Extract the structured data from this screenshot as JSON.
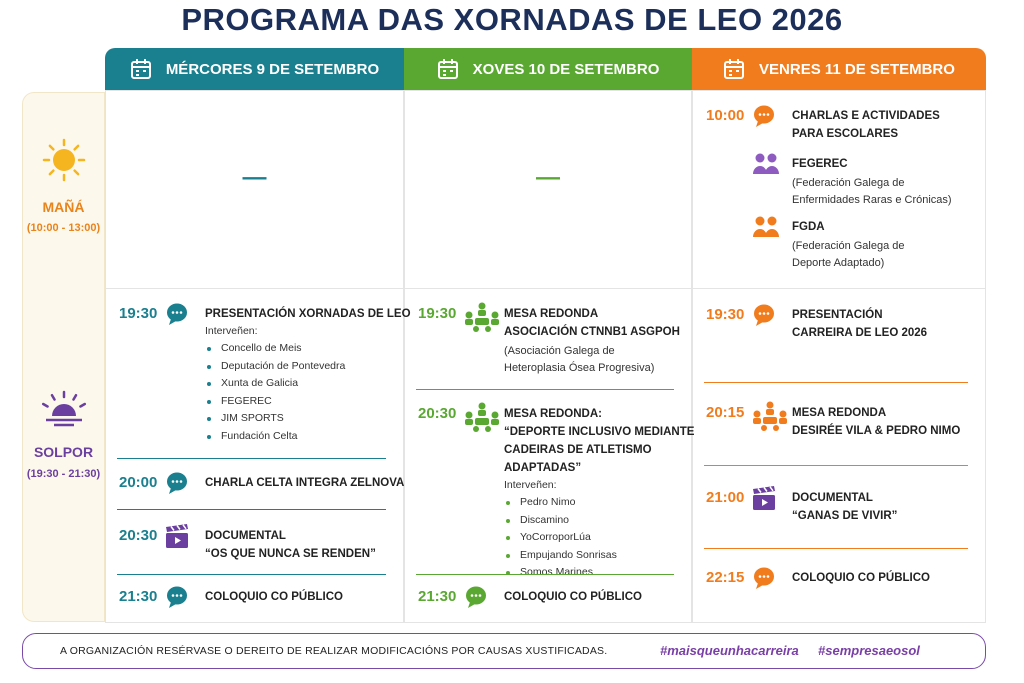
{
  "header": {
    "title": "PROGRAMA DAS XORNADAS DE LEO 2026"
  },
  "days": [
    "MÉRCORES 9 DE SETEMBRO",
    "XOVES 10 DE SETEMBRO",
    "VENRES 11 DE SETEMBRO"
  ],
  "periods": [
    {
      "name": "MAÑÁ",
      "hours": "(10:00 - 13:00)"
    },
    {
      "name": "SOLPOR",
      "hours": "(19:30 - 21:30)"
    }
  ],
  "morning": [
    {
      "placeholder": "—"
    },
    {
      "placeholder": "—"
    },
    {
      "events": [
        {
          "time": "10:00",
          "title": [
            "CHARLAS E ACTIVIDADES",
            "PARA ESCOLARES"
          ]
        },
        {
          "title": [
            "FEGEREC"
          ],
          "detail": [
            "(Federación Galega de",
            "Enfermidades Raras e Crónicas)"
          ]
        },
        {
          "title": [
            "FGDA"
          ],
          "detail": [
            "(Federación Galega de",
            "Deporte Adaptado)"
          ]
        }
      ]
    }
  ],
  "afternoon": [
    {
      "events": [
        {
          "time": "19:30",
          "title": [
            "PRESENTACIÓN XORNADAS DE LEO"
          ],
          "speakers_label": "Interveñen:",
          "speakers": [
            "Concello de Meis",
            "Deputación de Pontevedra",
            "Xunta de Galicia",
            "FEGEREC",
            "JIM SPORTS",
            "Fundación Celta"
          ]
        },
        {
          "time": "20:00",
          "title": [
            "CHARLA CELTA INTEGRA ZELNOVA"
          ]
        },
        {
          "time": "20:30",
          "title": [
            "DOCUMENTAL",
            "“OS QUE NUNCA SE RENDEN”"
          ]
        },
        {
          "time": "21:30",
          "title": [
            "COLOQUIO CO PÚBLICO"
          ]
        }
      ]
    },
    {
      "events": [
        {
          "time": "19:30",
          "title": [
            "MESA REDONDA",
            "ASOCIACIÓN CTNNB1 ASGPOH"
          ],
          "detail": [
            "(Asociación Galega de",
            "Heteroplasia Ósea Progresiva)"
          ]
        },
        {
          "time": "20:30",
          "title": [
            "MESA REDONDA:",
            "“DEPORTE INCLUSIVO MEDIANTE",
            "CADEIRAS DE ATLETISMO",
            "ADAPTADAS”"
          ],
          "speakers_label": "Interveñen:",
          "speakers": [
            "Pedro Nimo",
            "Discamino",
            "YoCorroporLúa",
            "Empujando Sonrisas",
            "Somos Marines"
          ]
        },
        {
          "time": "21:30",
          "title": [
            "COLOQUIO CO PÚBLICO"
          ]
        }
      ]
    },
    {
      "events": [
        {
          "time": "19:30",
          "title": [
            "PRESENTACIÓN",
            "CARREIRA DE LEO 2026"
          ]
        },
        {
          "time": "20:15",
          "title": [
            "MESA REDONDA",
            "DESIRÉE VILA & PEDRO NIMO"
          ]
        },
        {
          "time": "21:00",
          "title": [
            "DOCUMENTAL",
            "“GANAS DE VIVIR”"
          ]
        },
        {
          "time": "22:15",
          "title": [
            "COLOQUIO CO PÚBLICO"
          ]
        }
      ]
    }
  ],
  "footer": {
    "note": "A ORGANIZACIÓN RESÉRVASE O DEREITO DE REALIZAR MODIFICACIÓNS POR CAUSAS XUSTIFICADAS.",
    "hashtags": [
      "#maisqueunhacarreira",
      "#sempresaeosol"
    ]
  }
}
